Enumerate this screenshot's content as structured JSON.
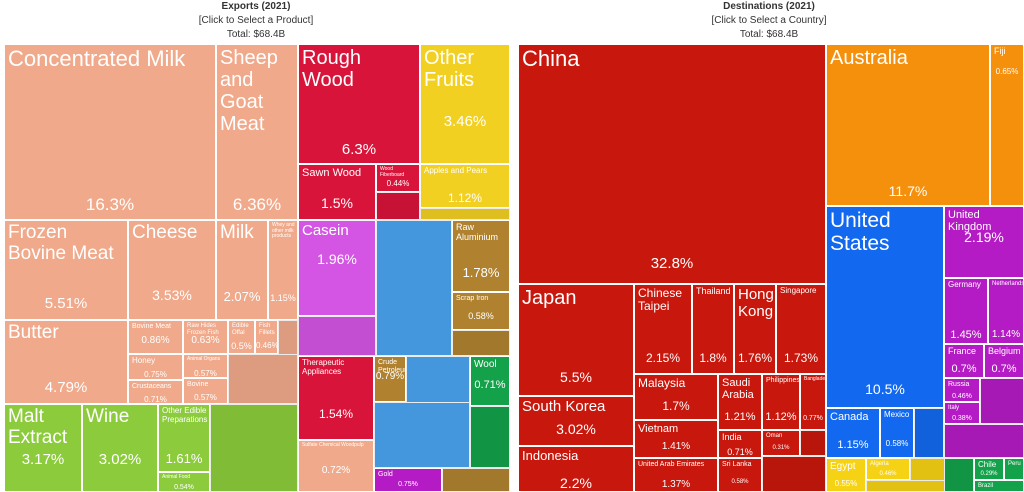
{
  "left": {
    "title": "Exports (2021)",
    "subtitle": "[Click to Select a Product]",
    "total": "Total: $68.4B"
  },
  "right": {
    "title": "Destinations (2021)",
    "subtitle": "[Click to Select a Country]",
    "total": "Total: $68.4B"
  },
  "colors": {
    "animal": "#f0a98a",
    "wood": "#d9143a",
    "fruit": "#f2d022",
    "chem": "#d455e3",
    "metal": "#b08230",
    "machine": "#4aa3f0",
    "food": "#8ccc3c",
    "asia": "#c8170c",
    "oceania": "#f5900c",
    "namerica": "#1269f0",
    "europe": "#b51bc4",
    "africa": "#f6d215",
    "samerica": "#13a14a"
  },
  "exports": [
    {
      "name": "Concentrated Milk",
      "pct": "16.3%"
    },
    {
      "name": "Sheep and Goat Meat",
      "pct": "6.36%"
    },
    {
      "name": "Rough Wood",
      "pct": "6.3%"
    },
    {
      "name": "Other Fruits",
      "pct": "3.46%"
    },
    {
      "name": "Frozen Bovine Meat",
      "pct": "5.51%"
    },
    {
      "name": "Cheese",
      "pct": "3.53%"
    },
    {
      "name": "Milk",
      "pct": "2.07%"
    },
    {
      "name": "Whey and other milk products",
      "pct": "1.15%"
    },
    {
      "name": "Butter",
      "pct": "4.79%"
    },
    {
      "name": "Bovine Meat",
      "pct": "0.86%"
    },
    {
      "name": "Raw Hides Frozen Fish",
      "pct": "0.63%"
    },
    {
      "name": "Edible Offal",
      "pct": "0.5%"
    },
    {
      "name": "Fish Fillets",
      "pct": "0.46%"
    },
    {
      "name": "Honey",
      "pct": "0.75%"
    },
    {
      "name": "Animal Organs",
      "pct": "0.57%"
    },
    {
      "name": "Crustaceans",
      "pct": "0.71%"
    },
    {
      "name": "Bovine",
      "pct": "0.57%"
    },
    {
      "name": "Malt Extract",
      "pct": "3.17%"
    },
    {
      "name": "Wine",
      "pct": "3.02%"
    },
    {
      "name": "Other Edible Preparations",
      "pct": "1.61%"
    },
    {
      "name": "Animal Food",
      "pct": "0.54%"
    },
    {
      "name": "Sawn Wood",
      "pct": "1.5%"
    },
    {
      "name": "Wood Fiberboard",
      "pct": "0.44%"
    },
    {
      "name": "Apples and Pears",
      "pct": "1.12%"
    },
    {
      "name": "Casein",
      "pct": "1.96%"
    },
    {
      "name": "Raw Aluminium",
      "pct": "1.78%"
    },
    {
      "name": "Scrap Iron",
      "pct": "0.58%"
    },
    {
      "name": "Therapeutic Appliances",
      "pct": "1.54%"
    },
    {
      "name": "Crude Petroleum",
      "pct": "0.79%"
    },
    {
      "name": "Wool",
      "pct": "0.71%"
    },
    {
      "name": "Gold",
      "pct": "0.75%"
    },
    {
      "name": "Sulfate Chemical Woodpulp",
      "pct": "0.72%"
    }
  ],
  "destinations": [
    {
      "name": "China",
      "pct": "32.8%"
    },
    {
      "name": "Australia",
      "pct": "11.7%"
    },
    {
      "name": "Fiji",
      "pct": "0.65%"
    },
    {
      "name": "United States",
      "pct": "10.5%"
    },
    {
      "name": "United Kingdom",
      "pct": "2.19%"
    },
    {
      "name": "Germany",
      "pct": "1.45%"
    },
    {
      "name": "Netherlands",
      "pct": "1.14%"
    },
    {
      "name": "France",
      "pct": "0.7%"
    },
    {
      "name": "Belgium",
      "pct": "0.7%"
    },
    {
      "name": "Russia",
      "pct": "0.46%"
    },
    {
      "name": "Italy",
      "pct": "0.38%"
    },
    {
      "name": "Japan",
      "pct": "5.5%"
    },
    {
      "name": "Chinese Taipei",
      "pct": "2.15%"
    },
    {
      "name": "Thailand",
      "pct": "1.8%"
    },
    {
      "name": "Hong Kong",
      "pct": "1.76%"
    },
    {
      "name": "Singapore",
      "pct": "1.73%"
    },
    {
      "name": "South Korea",
      "pct": "3.02%"
    },
    {
      "name": "Malaysia",
      "pct": "1.7%"
    },
    {
      "name": "Saudi Arabia",
      "pct": "1.21%"
    },
    {
      "name": "Philippines",
      "pct": "1.12%"
    },
    {
      "name": "Bangladesh",
      "pct": "0.77%"
    },
    {
      "name": "Vietnam",
      "pct": "1.41%"
    },
    {
      "name": "India",
      "pct": "0.71%"
    },
    {
      "name": "Oman",
      "pct": "0.31%"
    },
    {
      "name": "Indonesia",
      "pct": "2.2%"
    },
    {
      "name": "United Arab Emirates",
      "pct": "1.37%"
    },
    {
      "name": "Sri Lanka",
      "pct": "0.58%"
    },
    {
      "name": "Canada",
      "pct": "1.15%"
    },
    {
      "name": "Mexico",
      "pct": "0.58%"
    },
    {
      "name": "Egypt",
      "pct": "0.55%"
    },
    {
      "name": "Algeria",
      "pct": "0.46%"
    },
    {
      "name": "Chile",
      "pct": "0.29%"
    },
    {
      "name": "Peru",
      "pct": ""
    },
    {
      "name": "Brazil",
      "pct": ""
    }
  ]
}
